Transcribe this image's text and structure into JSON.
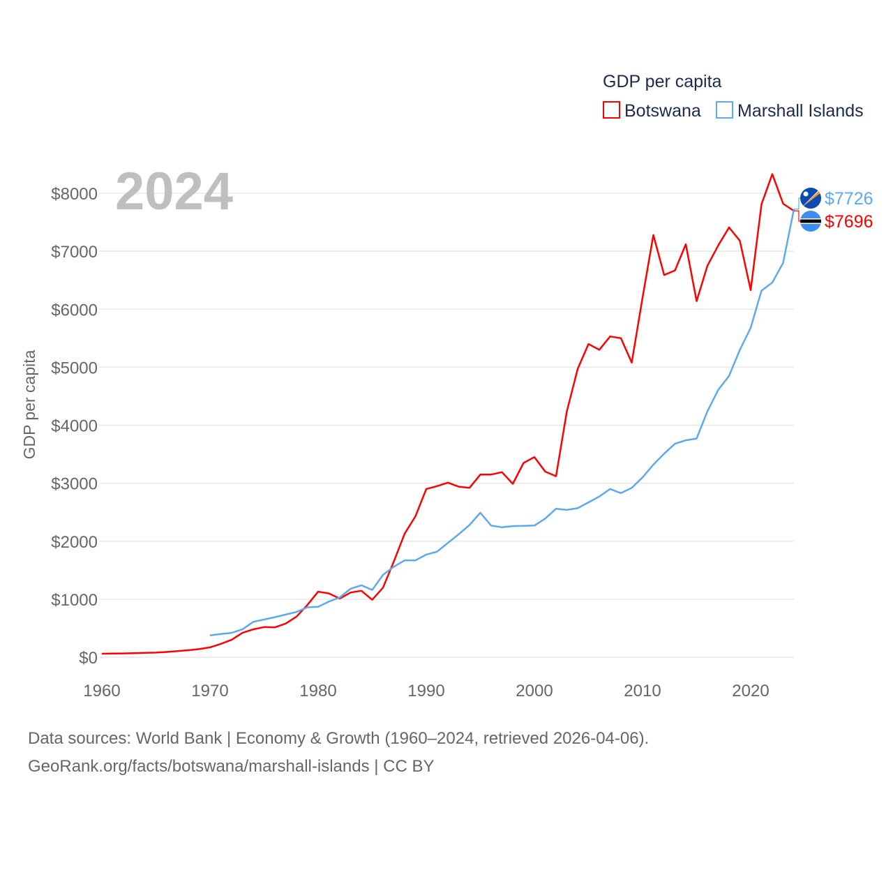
{
  "chart_data": {
    "type": "line",
    "title": "GDP per capita",
    "year_overlay": "2024",
    "xlabel": "",
    "ylabel": "GDP per capita",
    "xlim": [
      1960,
      2024
    ],
    "ylim": [
      0,
      8000
    ],
    "x_ticks": [
      1960,
      1970,
      1980,
      1990,
      2000,
      2010,
      2020
    ],
    "y_ticks": [
      0,
      1000,
      2000,
      3000,
      4000,
      5000,
      6000,
      7000,
      8000
    ],
    "y_tick_labels": [
      "$0",
      "$1000",
      "$2000",
      "$3000",
      "$4000",
      "$5000",
      "$6000",
      "$7000",
      "$8000"
    ],
    "x_tick_labels": [
      "1960",
      "1970",
      "1980",
      "1990",
      "2000",
      "2010",
      "2020"
    ],
    "grid": true,
    "legend_position": "top-right",
    "series": [
      {
        "name": "Botswana",
        "color": "#ff0000",
        "start_year": 1960,
        "end_label": "$7696",
        "values": [
          60,
          62,
          65,
          70,
          75,
          80,
          90,
          105,
          120,
          140,
          170,
          230,
          300,
          420,
          480,
          520,
          515,
          580,
          700,
          900,
          1130,
          1100,
          1010,
          1115,
          1145,
          990,
          1200,
          1650,
          2130,
          2430,
          2900,
          2950,
          3010,
          2940,
          2920,
          3150,
          3150,
          3190,
          2990,
          3350,
          3450,
          3200,
          3120,
          4240,
          4970,
          5400,
          5300,
          5530,
          5500,
          5080,
          6200,
          7280,
          6590,
          6670,
          7120,
          6140,
          6750,
          7100,
          7410,
          7180,
          6330,
          7810,
          8330,
          7820,
          7696
        ]
      },
      {
        "name": "Marshall Islands",
        "color": "#5ea8ee",
        "start_year": 1970,
        "end_label": "$7726",
        "values": [
          375,
          400,
          420,
          480,
          610,
          650,
          690,
          735,
          780,
          860,
          870,
          960,
          1030,
          1180,
          1240,
          1160,
          1420,
          1560,
          1670,
          1670,
          1770,
          1820,
          1970,
          2120,
          2280,
          2490,
          2270,
          2240,
          2260,
          2265,
          2270,
          2390,
          2560,
          2540,
          2570,
          2670,
          2770,
          2900,
          2830,
          2920,
          3100,
          3320,
          3510,
          3680,
          3740,
          3770,
          4240,
          4610,
          4850,
          5300,
          5680,
          6320,
          6460,
          6800,
          7726
        ]
      }
    ]
  },
  "footer": {
    "line1": "Data sources: World Bank | Economy & Growth (1960–2024, retrieved 2026-04-06).",
    "line2": "GeoRank.org/facts/botswana/marshall-islands | CC BY"
  }
}
